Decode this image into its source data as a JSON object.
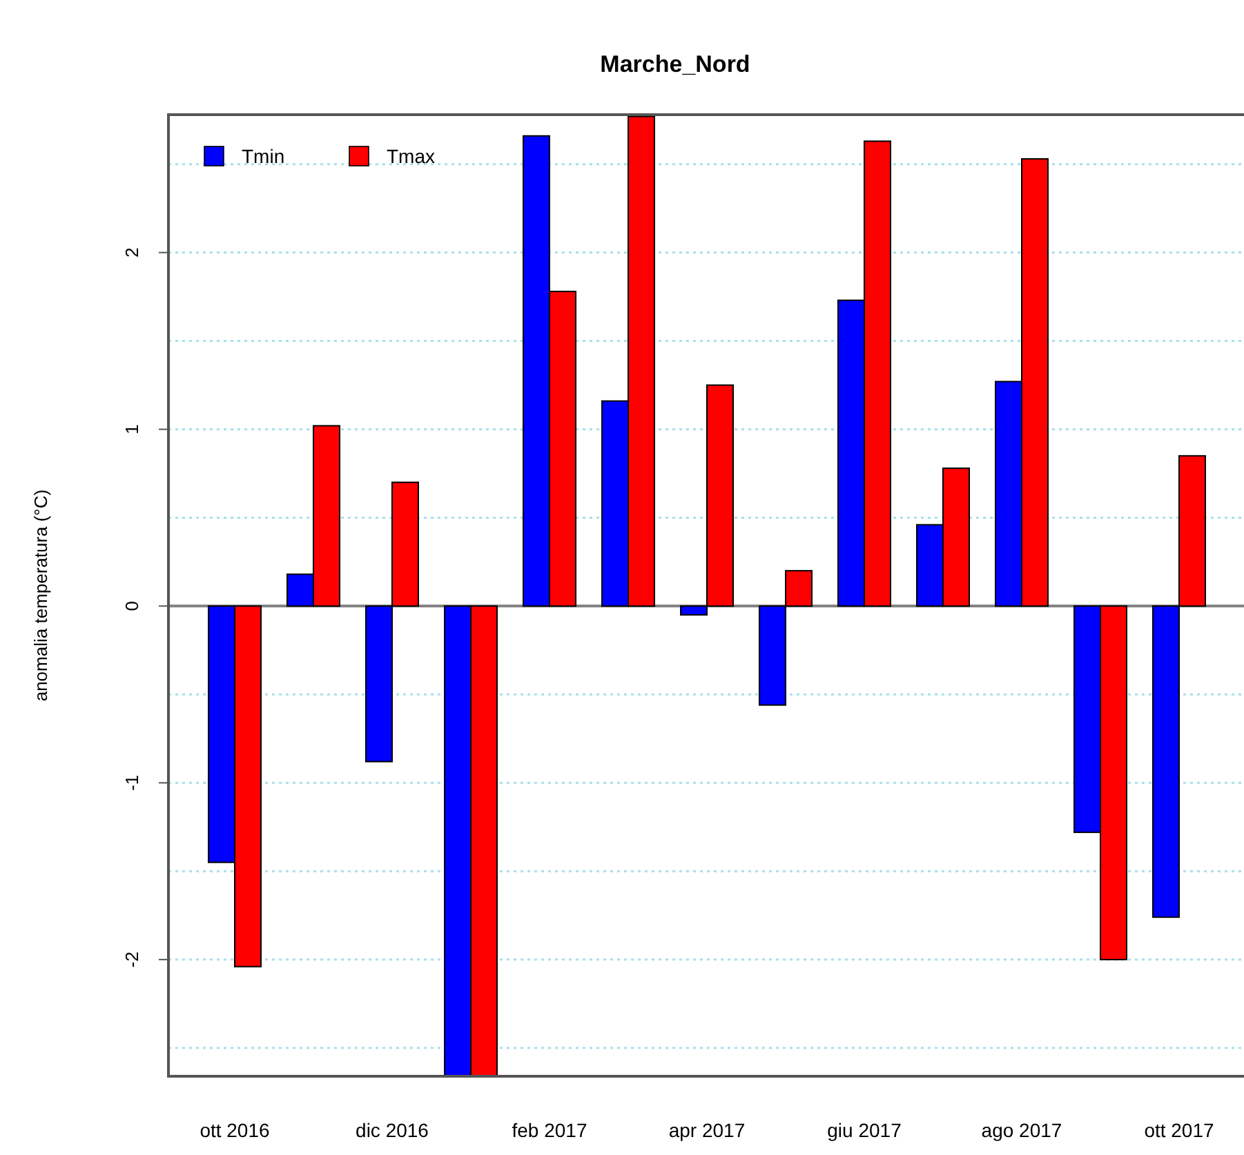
{
  "chart_data": {
    "type": "bar",
    "title": "Marche_Nord",
    "ylabel": "anomalia temperatura (°C)",
    "categories": [
      "ott 2016",
      null,
      "dic 2016",
      null,
      "feb 2017",
      null,
      "apr 2017",
      null,
      "giu 2017",
      null,
      "ago 2017",
      null,
      "ott 2017"
    ],
    "series": [
      {
        "name": "Tmin",
        "color": "#0000ff",
        "values": [
          -1.45,
          0.18,
          -0.88,
          -2.66,
          2.66,
          1.16,
          -0.05,
          -0.56,
          1.73,
          0.46,
          1.27,
          -1.28,
          -1.76
        ]
      },
      {
        "name": "Tmax",
        "color": "#ff0000",
        "values": [
          -2.04,
          1.02,
          0.7,
          -2.66,
          1.78,
          2.77,
          1.25,
          0.2,
          2.63,
          0.78,
          2.53,
          -2.0,
          0.85
        ]
      }
    ],
    "ylim": [
      -2.66,
      2.78
    ],
    "yticks": [
      {
        "value": -2.5,
        "label": null
      },
      -2,
      {
        "value": -1.5,
        "label": null
      },
      -1,
      {
        "value": -0.5,
        "label": null
      },
      0,
      {
        "value": 0.5,
        "label": null
      },
      1,
      {
        "value": 1.5,
        "label": null
      },
      2,
      {
        "value": 2.5,
        "label": null
      }
    ],
    "ref_lines": [
      {
        "axis": "y",
        "value": 0,
        "color": "#808080"
      }
    ],
    "grid": "y",
    "legend": "top left"
  }
}
